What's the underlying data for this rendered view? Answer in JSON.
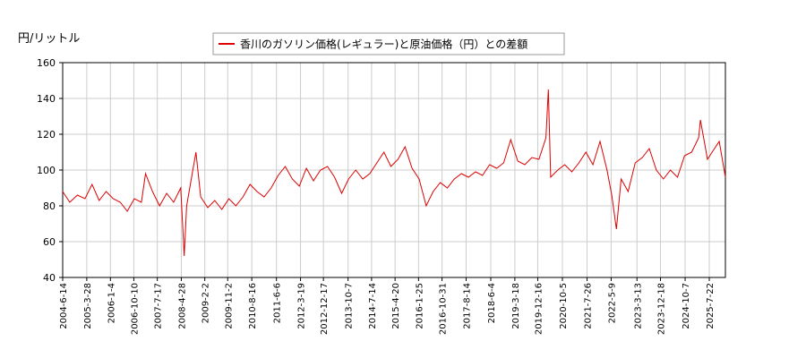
{
  "chart_data": {
    "type": "line",
    "title": "香川のガソリン価格(レギュラー)と原油価格（円）との差額",
    "y_label": "円/リットル",
    "x": [
      "2004-6-14",
      "2004-9-6",
      "2004-12-6",
      "2005-3-7",
      "2005-5-30",
      "2005-8-22",
      "2005-11-14",
      "2006-2-6",
      "2006-5-1",
      "2006-7-24",
      "2006-10-16",
      "2007-1-8",
      "2007-2-26",
      "2007-5-21",
      "2007-8-13",
      "2007-11-5",
      "2008-1-28",
      "2008-4-21",
      "2008-6-2",
      "2008-6-30",
      "2008-8-25",
      "2008-10-20",
      "2008-12-15",
      "2009-3-9",
      "2009-6-1",
      "2009-8-24",
      "2009-11-16",
      "2010-2-8",
      "2010-5-3",
      "2010-7-26",
      "2010-10-18",
      "2011-1-10",
      "2011-4-4",
      "2011-6-27",
      "2011-9-19",
      "2011-12-12",
      "2012-3-5",
      "2012-5-28",
      "2012-8-20",
      "2012-11-12",
      "2013-2-4",
      "2013-4-29",
      "2013-7-22",
      "2013-10-14",
      "2014-1-6",
      "2014-3-31",
      "2014-6-23",
      "2014-9-15",
      "2014-12-8",
      "2015-3-2",
      "2015-5-25",
      "2015-8-17",
      "2015-11-9",
      "2016-2-1",
      "2016-4-25",
      "2016-7-18",
      "2016-10-10",
      "2017-1-2",
      "2017-3-27",
      "2017-6-19",
      "2017-9-11",
      "2017-12-4",
      "2018-2-26",
      "2018-5-21",
      "2018-8-13",
      "2018-11-5",
      "2019-1-28",
      "2019-4-22",
      "2019-7-15",
      "2019-10-7",
      "2019-12-30",
      "2020-3-23",
      "2020-4-20",
      "2020-5-18",
      "2020-8-10",
      "2020-11-2",
      "2021-1-25",
      "2021-4-19",
      "2021-7-12",
      "2021-10-4",
      "2021-12-27",
      "2022-3-21",
      "2022-5-16",
      "2022-7-11",
      "2022-9-5",
      "2022-11-28",
      "2023-2-20",
      "2023-5-15",
      "2023-8-7",
      "2023-10-30",
      "2024-1-22",
      "2024-4-15",
      "2024-7-8",
      "2024-9-30",
      "2024-12-23",
      "2025-3-17",
      "2025-4-7",
      "2025-6-30",
      "2025-9-22",
      "2025-11-17",
      "2026-1-30"
    ],
    "series": [
      {
        "name": "香川のガソリン価格(レギュラー)と原油価格（円）との差額",
        "color": "#dd0000",
        "values": [
          88,
          82,
          86,
          84,
          92,
          83,
          88,
          84,
          82,
          77,
          84,
          82,
          98,
          88,
          80,
          87,
          82,
          90,
          52,
          80,
          95,
          110,
          85,
          79,
          83,
          78,
          84,
          80,
          85,
          92,
          88,
          85,
          90,
          97,
          102,
          95,
          91,
          101,
          94,
          100,
          102,
          96,
          87,
          95,
          100,
          95,
          98,
          104,
          110,
          102,
          106,
          113,
          101,
          95,
          80,
          88,
          93,
          90,
          95,
          98,
          96,
          99,
          97,
          103,
          101,
          104,
          117,
          105,
          103,
          107,
          106,
          118,
          145,
          96,
          100,
          103,
          99,
          104,
          110,
          103,
          116,
          100,
          86,
          67,
          95,
          88,
          104,
          107,
          112,
          100,
          95,
          100,
          96,
          108,
          110,
          118,
          128,
          106,
          112,
          116,
          96
        ]
      }
    ],
    "xlim": [
      "2004-6-14",
      "2026-1-30"
    ],
    "xticks": [
      "2004-6-14",
      "2005-3-28",
      "2006-1-4",
      "2006-10-10",
      "2007-7-17",
      "2008-4-28",
      "2009-2-2",
      "2009-11-2",
      "2010-8-16",
      "2011-6-6",
      "2012-3-19",
      "2012-12-17",
      "2013-10-7",
      "2014-7-14",
      "2015-4-20",
      "2016-1-25",
      "2016-10-31",
      "2017-8-14",
      "2018-6-4",
      "2019-3-18",
      "2019-12-16",
      "2020-10-5",
      "2021-7-26",
      "2022-5-9",
      "2023-3-13",
      "2023-12-18",
      "2024-10-7",
      "2025-7-22"
    ],
    "ylim": [
      40,
      160
    ],
    "yticks": [
      40,
      60,
      80,
      100,
      120,
      140,
      160
    ],
    "grid": true
  }
}
